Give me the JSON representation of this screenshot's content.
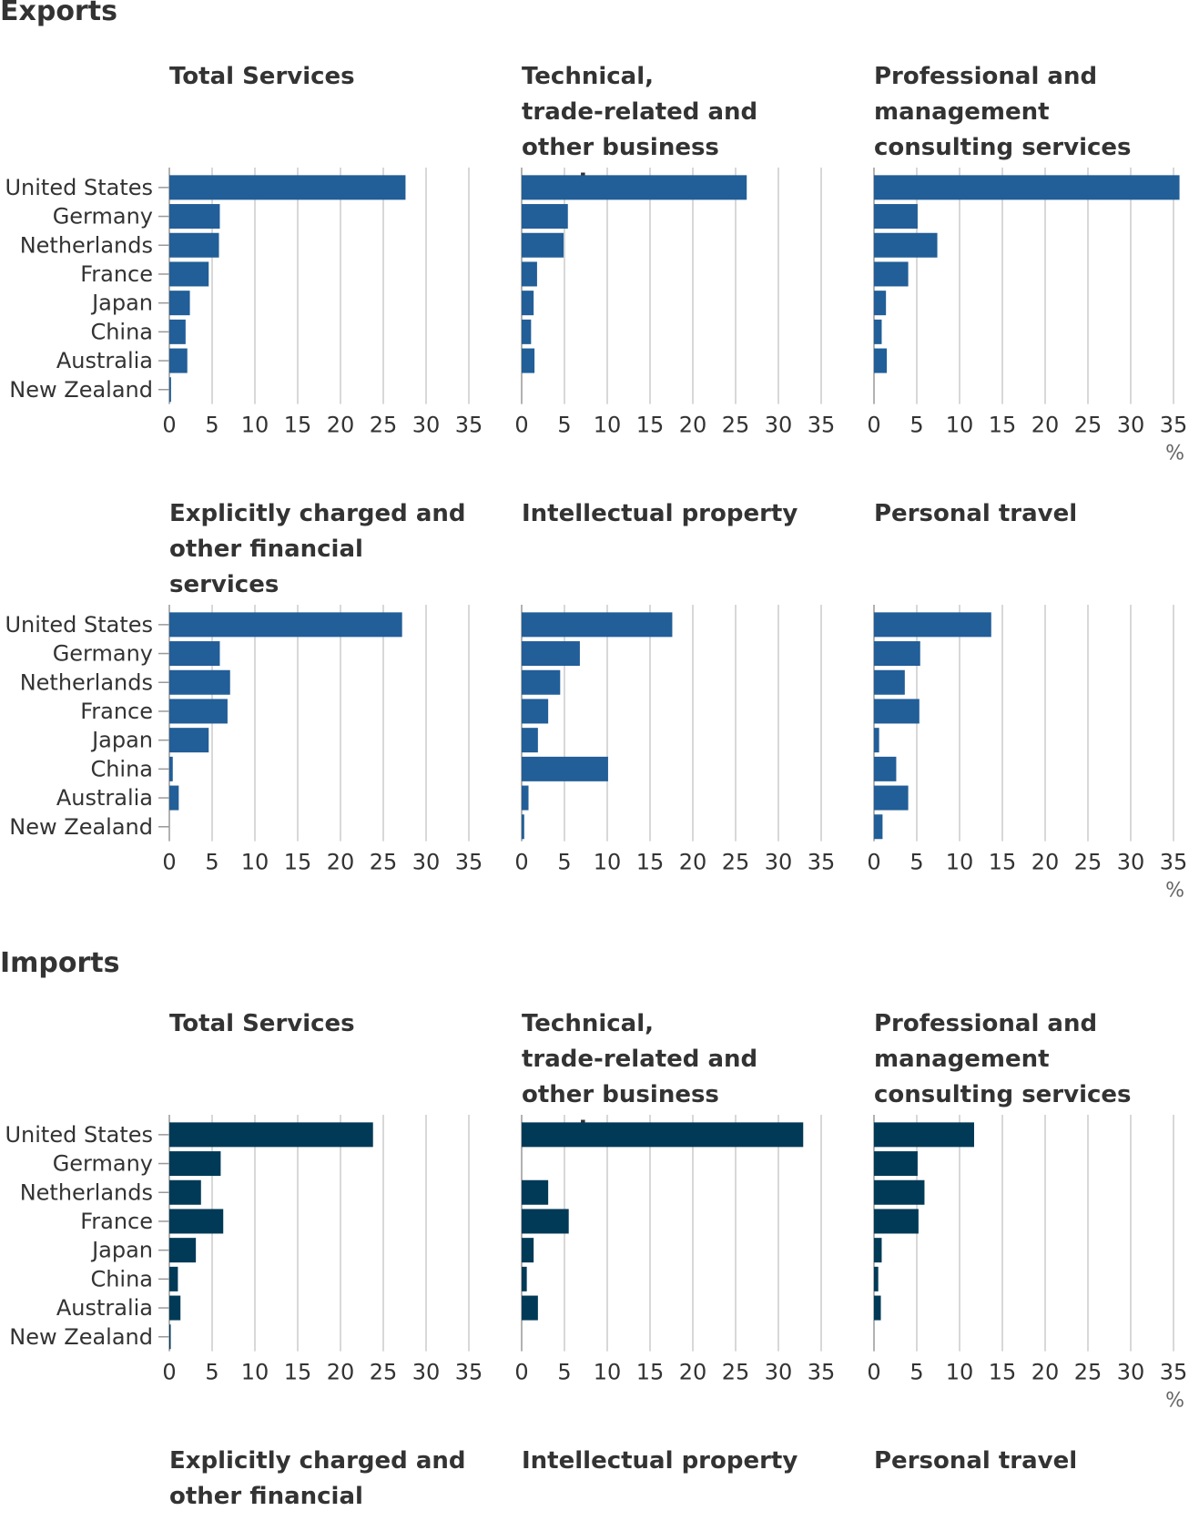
{
  "colors": {
    "exports": "#225e97",
    "imports": "#003a57",
    "grid": "#cccccc",
    "text": "#333333"
  },
  "unit": "%",
  "chart_data": [
    {
      "type": "bar",
      "section": "Exports",
      "countries": [
        "United States",
        "Germany",
        "Netherlands",
        "France",
        "Japan",
        "China",
        "Australia",
        "New Zealand"
      ],
      "xticks": [
        0,
        5,
        10,
        15,
        20,
        25,
        30,
        35
      ],
      "xlim": [
        0,
        35
      ],
      "unit": "%",
      "grid": true,
      "color": "#225e97",
      "panels": [
        {
          "title": "Total Services",
          "values": [
            27.6,
            5.9,
            5.8,
            4.6,
            2.4,
            1.9,
            2.1,
            0.2
          ]
        },
        {
          "title": "Technical, trade-related and other business services",
          "values": [
            26.3,
            5.4,
            4.9,
            1.8,
            1.4,
            1.1,
            1.5,
            0.0
          ]
        },
        {
          "title": "Professional and management consulting services",
          "values": [
            35.7,
            5.1,
            7.4,
            4.0,
            1.4,
            0.9,
            1.5,
            0.0
          ]
        },
        {
          "title": "Explicitly charged and other financial services",
          "values": [
            27.2,
            5.9,
            7.1,
            6.8,
            4.6,
            0.4,
            1.1,
            0.0
          ]
        },
        {
          "title": "Intellectual property",
          "values": [
            17.6,
            6.8,
            4.5,
            3.1,
            1.9,
            10.1,
            0.8,
            0.3
          ]
        },
        {
          "title": "Personal travel",
          "values": [
            13.7,
            5.4,
            3.6,
            5.3,
            0.6,
            2.6,
            4.0,
            1.0
          ]
        }
      ]
    },
    {
      "type": "bar",
      "section": "Imports",
      "countries": [
        "United States",
        "Germany",
        "Netherlands",
        "France",
        "Japan",
        "China",
        "Australia",
        "New Zealand"
      ],
      "xticks": [
        0,
        5,
        10,
        15,
        20,
        25,
        30,
        35
      ],
      "xlim": [
        0,
        35
      ],
      "unit": "%",
      "grid": true,
      "color": "#003a57",
      "panels": [
        {
          "title": "Total Services",
          "values": [
            23.8,
            6.0,
            3.7,
            6.3,
            3.1,
            1.0,
            1.3,
            0.1
          ]
        },
        {
          "title": "Technical, trade-related and other business services",
          "values": [
            32.9,
            0.0,
            3.1,
            5.5,
            1.4,
            0.6,
            1.9,
            0.0
          ]
        },
        {
          "title": "Professional and management consulting services",
          "values": [
            11.7,
            5.1,
            5.9,
            5.2,
            0.9,
            0.5,
            0.8,
            0.0
          ]
        },
        {
          "title": "Explicitly charged and other financial services",
          "values": []
        },
        {
          "title": "Intellectual property",
          "values": []
        },
        {
          "title": "Personal travel",
          "values": []
        }
      ]
    }
  ]
}
